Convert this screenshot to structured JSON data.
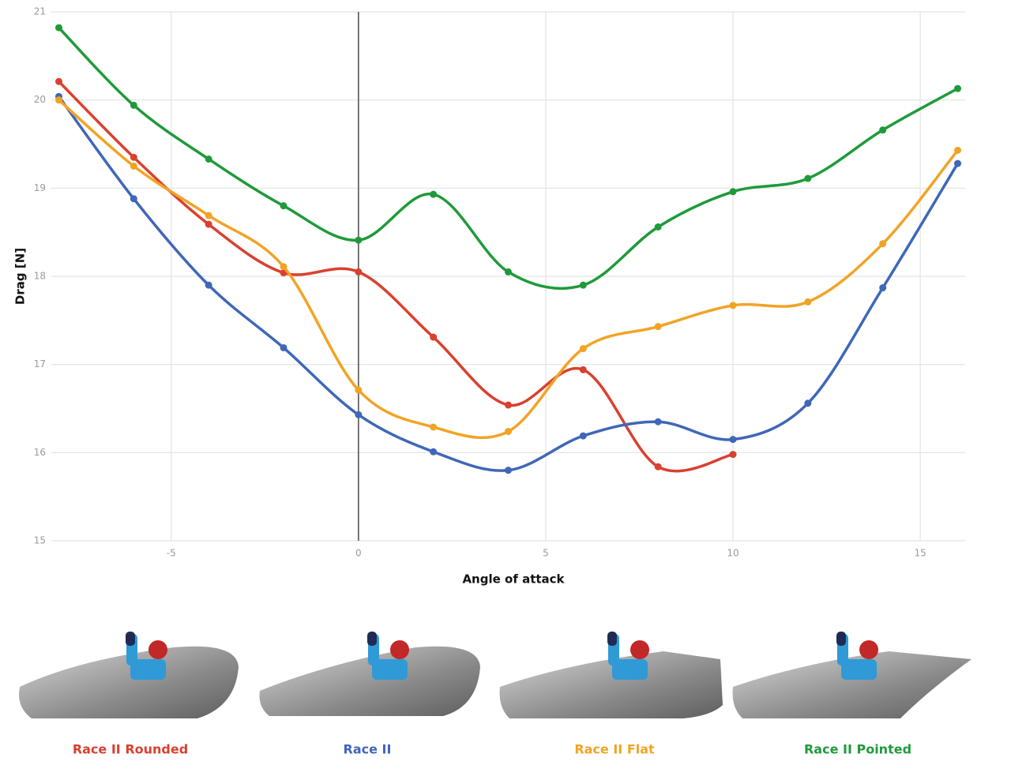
{
  "chart_data": {
    "type": "line",
    "x_label": "Angle of attack",
    "y_label": "Drag [N]",
    "x": [
      -8,
      -6,
      -4,
      -2,
      0,
      2,
      4,
      6,
      8,
      10,
      12,
      14,
      16
    ],
    "xlim": [
      -8.2,
      16.2
    ],
    "xticks": [
      -5,
      0,
      5,
      10,
      15
    ],
    "ylim": [
      15,
      21
    ],
    "yticks": [
      15,
      16,
      17,
      18,
      19,
      20,
      21
    ],
    "grid": true,
    "series": [
      {
        "name": "Race II Rounded",
        "color": "#d9412f",
        "values": [
          20.21,
          19.35,
          18.59,
          18.04,
          18.05,
          17.31,
          16.54,
          16.94,
          15.84,
          15.98,
          null,
          null,
          null
        ]
      },
      {
        "name": "Race II",
        "color": "#3f67b8",
        "values": [
          20.04,
          18.88,
          17.9,
          17.19,
          16.43,
          16.01,
          15.8,
          16.19,
          16.35,
          16.15,
          16.56,
          17.87,
          19.28
        ]
      },
      {
        "name": "Race II Flat",
        "color": "#f2a325",
        "values": [
          20.0,
          19.25,
          18.69,
          18.11,
          16.71,
          16.29,
          16.24,
          17.18,
          17.43,
          17.67,
          17.71,
          18.37,
          19.43
        ]
      },
      {
        "name": "Race II Pointed",
        "color": "#1f9a3a",
        "values": [
          20.82,
          19.94,
          19.33,
          18.8,
          18.41,
          18.93,
          18.05,
          17.9,
          18.56,
          18.96,
          19.11,
          19.66,
          20.13
        ]
      }
    ]
  }
}
